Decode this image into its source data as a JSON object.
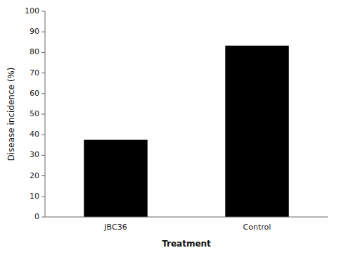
{
  "chart_data": {
    "type": "bar",
    "categories": [
      "JBC36",
      "Control"
    ],
    "values": [
      37.5,
      83.3
    ],
    "colors": [
      "#000000",
      "#000000"
    ],
    "xlabel": "Treatment",
    "ylabel": "Disease incidence (%)",
    "ylim": [
      0,
      100
    ],
    "yticks": [
      0,
      10,
      20,
      30,
      40,
      50,
      60,
      70,
      80,
      90,
      100
    ],
    "grid": false
  }
}
